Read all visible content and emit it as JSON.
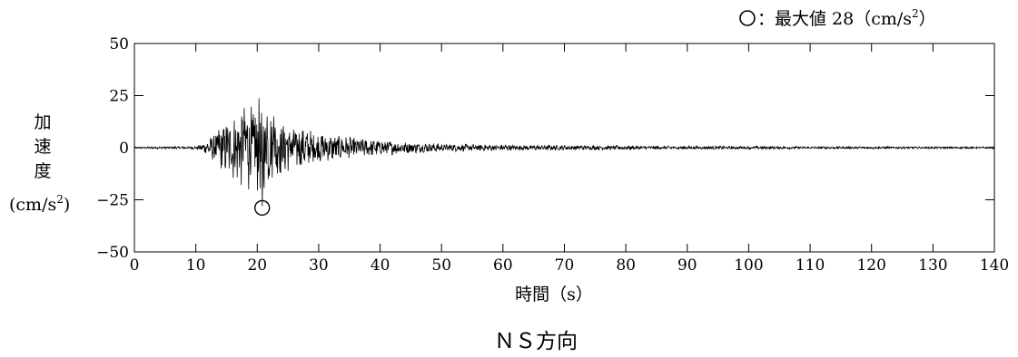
{
  "chart_data": {
    "type": "line",
    "title": "ＮＳ方向",
    "xlabel": "時間（s）",
    "ylabel": {
      "lines": [
        "加",
        "速",
        "度"
      ],
      "unit_prefix": "(cm/s",
      "unit_exp": "2",
      "unit_suffix": ")"
    },
    "xlim": [
      0,
      140
    ],
    "ylim": [
      -50,
      50
    ],
    "x_ticks": [
      "0",
      "10",
      "20",
      "30",
      "40",
      "50",
      "60",
      "70",
      "80",
      "90",
      "100",
      "110",
      "120",
      "130",
      "140"
    ],
    "y_ticks": [
      "50",
      "25",
      "0",
      "−25",
      "−50"
    ],
    "y_tick_values": [
      50,
      25,
      0,
      -25,
      -50
    ],
    "x_tick_values": [
      0,
      10,
      20,
      30,
      40,
      50,
      60,
      70,
      80,
      90,
      100,
      110,
      120,
      130,
      140
    ],
    "legend": {
      "symbol": "circle",
      "text": "：最大値 28（cm/s",
      "exp": "2",
      "suffix": "）",
      "placement": "top-right"
    },
    "max_marker": {
      "x": 20.8,
      "y": -28
    },
    "series": [
      {
        "color": "#000000",
        "envelope": [
          [
            0,
            0.3
          ],
          [
            10,
            0.6
          ],
          [
            11,
            1.5
          ],
          [
            12,
            3
          ],
          [
            13,
            6
          ],
          [
            14,
            9
          ],
          [
            15,
            11
          ],
          [
            16,
            13
          ],
          [
            17,
            15
          ],
          [
            18,
            18
          ],
          [
            19,
            17
          ],
          [
            20,
            20
          ],
          [
            21,
            18
          ],
          [
            22,
            14
          ],
          [
            23,
            12
          ],
          [
            25,
            10
          ],
          [
            27,
            8
          ],
          [
            30,
            6
          ],
          [
            33,
            5
          ],
          [
            36,
            4
          ],
          [
            40,
            3.2
          ],
          [
            45,
            2.2
          ],
          [
            50,
            1.6
          ],
          [
            60,
            1.2
          ],
          [
            70,
            1.0
          ],
          [
            80,
            0.8
          ],
          [
            90,
            0.7
          ],
          [
            100,
            0.6
          ],
          [
            110,
            0.5
          ],
          [
            120,
            0.45
          ],
          [
            130,
            0.4
          ],
          [
            140,
            0.35
          ]
        ],
        "peaks": [
          {
            "x": 17.9,
            "y": 19
          },
          {
            "x": 18.6,
            "y": -20
          },
          {
            "x": 19.4,
            "y": 16
          },
          {
            "x": 20.8,
            "y": -28
          },
          {
            "x": 21.6,
            "y": 15
          },
          {
            "x": 22.7,
            "y": 15
          }
        ]
      }
    ]
  }
}
